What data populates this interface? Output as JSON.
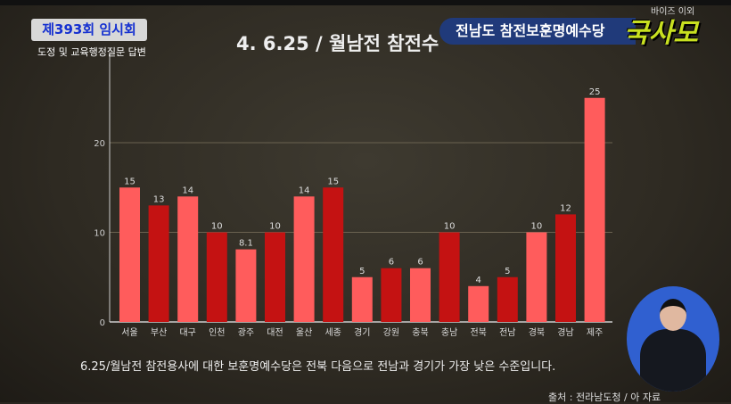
{
  "header": {
    "session": "제393회 임시회",
    "session_sub": "도정 및 교육행정질문 답변",
    "title": "4. 6.25 / 월남전 참전수",
    "topic": "전남도 참전보훈명예수당",
    "logo": "국사모",
    "logo_top": "바이즈 이외"
  },
  "caption": "6.25/월남전 참전용사에 대한 보훈명예수당은 전북 다음으로 전남과 경기가 가장 낮은 수준입니다.",
  "source": "출처 : 전라남도청 / 아    자료",
  "colors": {
    "light": "#ff5c5c",
    "dark": "#c41212",
    "axis": "#cccccc",
    "grid": "#6a6250"
  },
  "chart_data": {
    "type": "bar",
    "categories": [
      "서울",
      "부산",
      "대구",
      "인천",
      "광주",
      "대전",
      "울산",
      "세종",
      "경기",
      "강원",
      "충북",
      "충남",
      "전북",
      "전남",
      "경북",
      "경남",
      "제주"
    ],
    "values": [
      15,
      13,
      14,
      10,
      8.1,
      10,
      14,
      15,
      5,
      6,
      6,
      10,
      4,
      5,
      10,
      12,
      25
    ],
    "bar_colors": [
      "light",
      "dark",
      "light",
      "dark",
      "light",
      "dark",
      "light",
      "dark",
      "light",
      "dark",
      "light",
      "dark",
      "light",
      "dark",
      "light",
      "dark",
      "light"
    ],
    "yticks": [
      0,
      10,
      20
    ],
    "ylim": [
      0,
      28
    ],
    "grid": true
  }
}
